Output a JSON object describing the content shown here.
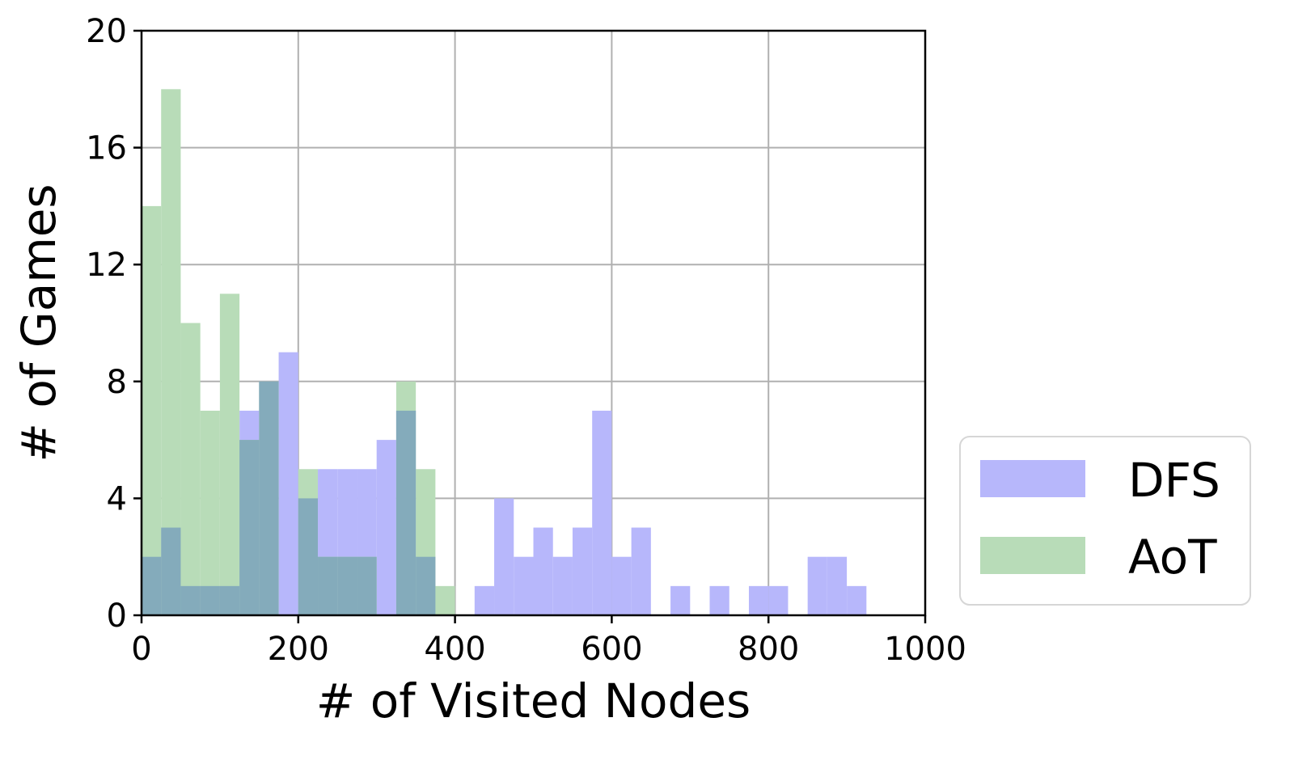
{
  "chart_data": {
    "type": "histogram",
    "xlabel": "# of Visited Nodes",
    "ylabel": "# of Games",
    "xlim": [
      0,
      1000
    ],
    "ylim": [
      0,
      20
    ],
    "xticks": [
      0,
      200,
      400,
      600,
      800,
      1000
    ],
    "yticks": [
      0,
      4,
      8,
      12,
      16,
      20
    ],
    "bin_width": 25,
    "grid": true,
    "legend_position": "outside-right-bottom",
    "series": [
      {
        "name": "DFS",
        "color": "#b7b7fb",
        "bin_starts": [
          0,
          25,
          50,
          75,
          100,
          125,
          150,
          175,
          200,
          225,
          250,
          275,
          300,
          325,
          350,
          375,
          400,
          425,
          450,
          475,
          500,
          525,
          550,
          575,
          600,
          625,
          650,
          675,
          700,
          725,
          750,
          775,
          800,
          825,
          850,
          875,
          900
        ],
        "counts": [
          2,
          3,
          1,
          1,
          1,
          7,
          8,
          9,
          4,
          5,
          5,
          5,
          6,
          7,
          2,
          0,
          0,
          1,
          4,
          2,
          3,
          2,
          3,
          7,
          2,
          3,
          0,
          1,
          0,
          1,
          0,
          1,
          1,
          0,
          2,
          2,
          1
        ]
      },
      {
        "name": "AoT",
        "color": "#b8dcb8",
        "bin_starts": [
          0,
          25,
          50,
          75,
          100,
          125,
          150,
          175,
          200,
          225,
          250,
          275,
          300,
          325,
          350,
          375
        ],
        "counts": [
          14,
          18,
          10,
          7,
          11,
          6,
          8,
          0,
          5,
          2,
          2,
          2,
          0,
          8,
          5,
          1
        ]
      }
    ],
    "overlap_color": "#84abbb"
  }
}
